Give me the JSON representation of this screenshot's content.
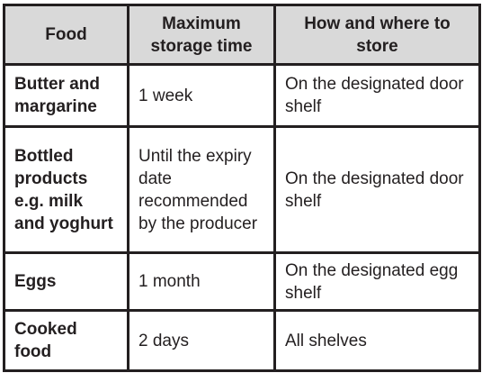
{
  "table": {
    "headers": [
      "Food",
      "Maximum storage time",
      "How and where to store"
    ],
    "rows": [
      {
        "food": "Butter and margarine",
        "time": "1 week",
        "where": "On the designated door shelf"
      },
      {
        "food": "Bottled products e.g. milk and yoghurt",
        "time": "Until the expiry date recommended by the producer",
        "where": "On the designated door shelf"
      },
      {
        "food": "Eggs",
        "time": "1 month",
        "where": "On the designated egg shelf"
      },
      {
        "food": "Cooked food",
        "time": "2 days",
        "where": "All shelves"
      }
    ]
  },
  "colors": {
    "header_bg": "#d9d9d9",
    "border": "#231f20",
    "text": "#231f20"
  }
}
